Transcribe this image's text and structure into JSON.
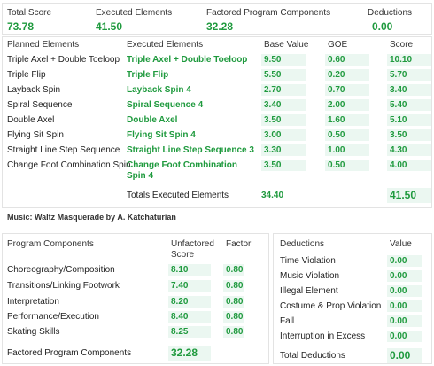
{
  "summary": {
    "total_score_label": "Total Score",
    "total_score": "73.78",
    "executed_label": "Executed Elements",
    "executed": "41.50",
    "factored_label": "Factored Program Components",
    "factored": "32.28",
    "deductions_label": "Deductions",
    "deductions": "0.00"
  },
  "elements": {
    "headers": {
      "planned": "Planned Elements",
      "executed": "Executed Elements",
      "base": "Base Value",
      "goe": "GOE",
      "score": "Score"
    },
    "rows": [
      {
        "planned": "Triple Axel + Double Toeloop",
        "executed": "Triple Axel + Double Toeloop",
        "base": "9.50",
        "goe": "0.60",
        "score": "10.10"
      },
      {
        "planned": "Triple Flip",
        "executed": "Triple Flip",
        "base": "5.50",
        "goe": "0.20",
        "score": "5.70"
      },
      {
        "planned": "Layback Spin",
        "executed": "Layback Spin 4",
        "base": "2.70",
        "goe": "0.70",
        "score": "3.40"
      },
      {
        "planned": "Spiral Sequence",
        "executed": "Spiral Sequence 4",
        "base": "3.40",
        "goe": "2.00",
        "score": "5.40"
      },
      {
        "planned": "Double Axel",
        "executed": "Double Axel",
        "base": "3.50",
        "goe": "1.60",
        "score": "5.10"
      },
      {
        "planned": "Flying Sit Spin",
        "executed": "Flying Sit Spin 4",
        "base": "3.00",
        "goe": "0.50",
        "score": "3.50"
      },
      {
        "planned": "Straight Line Step Sequence",
        "executed": "Straight Line Step Sequence 3",
        "base": "3.30",
        "goe": "1.00",
        "score": "4.30"
      },
      {
        "planned": "Change Foot Combination Spin",
        "executed_line1": "Change Foot Combination",
        "executed_line2": "Spin 4",
        "base": "3.50",
        "goe": "0.50",
        "score": "4.00"
      }
    ],
    "totals": {
      "label": "Totals Executed Elements",
      "base": "34.40",
      "score": "41.50"
    }
  },
  "music": "Music: Waltz Masquerade by A. Katchaturian",
  "components": {
    "headers": {
      "name": "Program Components",
      "unfactored_line1": "Unfactored",
      "unfactored_line2": "Score",
      "factor": "Factor"
    },
    "rows": [
      {
        "name": "Choreography/Composition",
        "score": "8.10",
        "factor": "0.80"
      },
      {
        "name": "Transitions/Linking Footwork",
        "score": "7.40",
        "factor": "0.80"
      },
      {
        "name": "Interpretation",
        "score": "8.20",
        "factor": "0.80"
      },
      {
        "name": "Performance/Execution",
        "score": "8.40",
        "factor": "0.80"
      },
      {
        "name": "Skating Skills",
        "score": "8.25",
        "factor": "0.80"
      }
    ],
    "total_label": "Factored Program Components",
    "total": "32.28"
  },
  "deductions": {
    "headers": {
      "name": "Deductions",
      "value": "Value"
    },
    "rows": [
      {
        "name": "Time Violation",
        "value": "0.00"
      },
      {
        "name": "Music Violation",
        "value": "0.00"
      },
      {
        "name": "Illegal Element",
        "value": "0.00"
      },
      {
        "name": "Costume & Prop Violation",
        "value": "0.00"
      },
      {
        "name": "Fall",
        "value": "0.00"
      },
      {
        "name": "Interruption in Excess",
        "value": "0.00"
      }
    ],
    "total_label": "Total Deductions",
    "total": "0.00"
  }
}
